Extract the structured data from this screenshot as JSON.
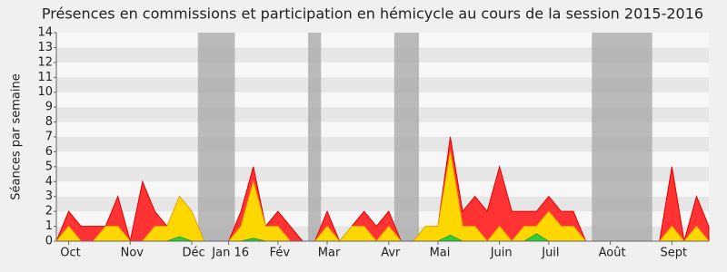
{
  "chart_data": {
    "type": "area",
    "title": "Présences en commissions et participation en hémicycle au cours de la session 2015-2016",
    "y_label": "Séances par semaine",
    "categories": [
      null,
      "Oct",
      null,
      null,
      null,
      null,
      "Nov",
      null,
      null,
      null,
      null,
      "Déc",
      null,
      null,
      "Jan 16",
      null,
      null,
      null,
      "Fév",
      null,
      null,
      null,
      "Mar",
      null,
      null,
      null,
      null,
      "Avr",
      null,
      null,
      null,
      "Mai",
      null,
      null,
      null,
      null,
      "Juin",
      null,
      null,
      null,
      "Juil",
      null,
      null,
      null,
      null,
      "Août",
      null,
      null,
      null,
      null,
      "Sept",
      null,
      null,
      null
    ],
    "series": [
      {
        "color": "#ff3333",
        "values": [
          0,
          2,
          1,
          1,
          1,
          3,
          0,
          4,
          2,
          1,
          3,
          2,
          0,
          0,
          0,
          2,
          5,
          1,
          2,
          1,
          0,
          0,
          2,
          0,
          1,
          2,
          1,
          2,
          0,
          0,
          1,
          1,
          7,
          2,
          3,
          2,
          5,
          2,
          2,
          2,
          3,
          2,
          2,
          0,
          0,
          0,
          0,
          0,
          0,
          0,
          5,
          0,
          3,
          1
        ]
      },
      {
        "color": "#ffd700",
        "values": [
          0,
          1,
          0,
          0,
          1,
          1,
          0,
          0,
          1,
          1,
          3,
          2,
          0,
          0,
          0,
          1,
          4,
          1,
          1,
          0,
          0,
          0,
          1,
          0,
          1,
          1,
          0,
          1,
          0,
          0,
          1,
          1,
          6,
          1,
          1,
          0,
          1,
          0,
          1,
          1,
          2,
          1,
          1,
          0,
          0,
          0,
          0,
          0,
          0,
          0,
          1,
          0,
          1,
          0
        ]
      },
      {
        "color": "#33cc33",
        "values": [
          0,
          0,
          0,
          0,
          0,
          0,
          0,
          0,
          0,
          0,
          0.3,
          0,
          0,
          0,
          0,
          0,
          0.2,
          0,
          0,
          0,
          0,
          0,
          0,
          0,
          0,
          0,
          0,
          0,
          0,
          0,
          0,
          0,
          0.4,
          0,
          0,
          0,
          0,
          0,
          0,
          0.5,
          0,
          0,
          0,
          0,
          0,
          0,
          0,
          0,
          0,
          0,
          0,
          0,
          0,
          0
        ]
      }
    ],
    "shaded_ranges": [
      [
        11.5,
        14.5
      ],
      [
        20.45,
        21.5
      ],
      [
        27.45,
        29.45
      ],
      [
        43.5,
        48.4
      ]
    ],
    "shade_color": "#aaaaaa",
    "ylim": [
      0,
      14
    ],
    "yticks": [
      0,
      1,
      2,
      3,
      4,
      5,
      6,
      7,
      8,
      9,
      10,
      11,
      12,
      13,
      14
    ],
    "grid": true
  }
}
